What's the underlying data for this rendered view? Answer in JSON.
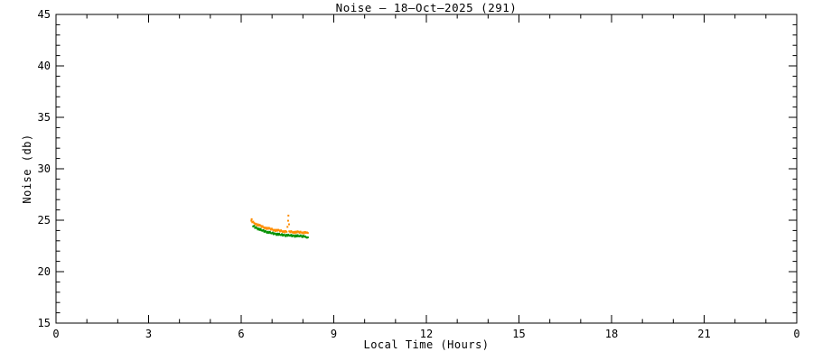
{
  "chart_data": {
    "type": "scatter",
    "title": "Noise – 18–Oct–2025 (291)",
    "xlabel": "Local Time (Hours)",
    "ylabel": "Noise (db)",
    "xlim": [
      0,
      24
    ],
    "ylim": [
      15,
      45
    ],
    "x_major_ticks": [
      0,
      3,
      6,
      9,
      12,
      15,
      18,
      21,
      24
    ],
    "x_tick_labels": [
      "0",
      "3",
      "6",
      "9",
      "12",
      "15",
      "18",
      "21",
      "0"
    ],
    "x_minor_step": 1,
    "y_major_ticks": [
      15,
      20,
      25,
      30,
      35,
      40,
      45
    ],
    "y_tick_labels": [
      "15",
      "20",
      "25",
      "30",
      "35",
      "40",
      "45"
    ],
    "y_minor_step": 1,
    "grid": false,
    "legend": "none",
    "background_color": "#FFFFFF",
    "axis_color": "#000000",
    "series": [
      {
        "name": "orange-channel",
        "color": "#FF8C00",
        "points": [
          [
            6.33,
            24.95
          ],
          [
            6.34,
            25.1
          ],
          [
            6.36,
            24.8
          ],
          [
            6.39,
            24.86
          ],
          [
            6.42,
            24.73
          ],
          [
            6.45,
            24.61
          ],
          [
            6.48,
            24.66
          ],
          [
            6.51,
            24.5
          ],
          [
            6.54,
            24.6
          ],
          [
            6.57,
            24.47
          ],
          [
            6.6,
            24.55
          ],
          [
            6.63,
            24.47
          ],
          [
            6.66,
            24.34
          ],
          [
            6.69,
            24.43
          ],
          [
            6.72,
            24.32
          ],
          [
            6.75,
            24.23
          ],
          [
            6.78,
            24.29
          ],
          [
            6.81,
            24.15
          ],
          [
            6.84,
            24.27
          ],
          [
            6.87,
            24.16
          ],
          [
            6.9,
            24.26
          ],
          [
            6.93,
            24.19
          ],
          [
            6.96,
            24.08
          ],
          [
            6.99,
            24.18
          ],
          [
            7.02,
            24.08
          ],
          [
            7.05,
            24.0
          ],
          [
            7.08,
            24.07
          ],
          [
            7.11,
            23.95
          ],
          [
            7.14,
            24.07
          ],
          [
            7.17,
            23.98
          ],
          [
            7.2,
            24.07
          ],
          [
            7.23,
            24.01
          ],
          [
            7.26,
            23.91
          ],
          [
            7.29,
            24.02
          ],
          [
            7.32,
            23.93
          ],
          [
            7.35,
            23.86
          ],
          [
            7.38,
            23.94
          ],
          [
            7.41,
            23.82
          ],
          [
            7.44,
            23.95
          ],
          [
            7.47,
            23.87
          ],
          [
            7.5,
            24.35
          ],
          [
            7.52,
            24.95
          ],
          [
            7.53,
            25.45
          ],
          [
            7.55,
            24.6
          ],
          [
            7.56,
            23.92
          ],
          [
            7.59,
            23.83
          ],
          [
            7.62,
            23.94
          ],
          [
            7.65,
            23.85
          ],
          [
            7.68,
            23.78
          ],
          [
            7.71,
            23.87
          ],
          [
            7.74,
            23.75
          ],
          [
            7.77,
            23.89
          ],
          [
            7.8,
            23.8
          ],
          [
            7.83,
            23.92
          ],
          [
            7.86,
            23.87
          ],
          [
            7.89,
            23.77
          ],
          [
            7.92,
            23.89
          ],
          [
            7.95,
            23.81
          ],
          [
            7.98,
            23.74
          ],
          [
            8.01,
            23.83
          ],
          [
            8.04,
            23.72
          ],
          [
            8.07,
            23.86
          ],
          [
            8.1,
            23.77
          ],
          [
            8.13,
            23.82
          ],
          [
            8.16,
            23.76
          ]
        ]
      },
      {
        "name": "green-channel",
        "color": "#009000",
        "points": [
          [
            6.39,
            24.4
          ],
          [
            6.42,
            24.45
          ],
          [
            6.45,
            24.25
          ],
          [
            6.48,
            24.32
          ],
          [
            6.51,
            24.23
          ],
          [
            6.54,
            24.1
          ],
          [
            6.57,
            24.19
          ],
          [
            6.6,
            24.05
          ],
          [
            6.63,
            24.15
          ],
          [
            6.66,
            24.01
          ],
          [
            6.69,
            23.97
          ],
          [
            6.72,
            24.04
          ],
          [
            6.75,
            23.87
          ],
          [
            6.78,
            23.95
          ],
          [
            6.81,
            23.88
          ],
          [
            6.84,
            23.77
          ],
          [
            6.87,
            23.88
          ],
          [
            6.9,
            23.76
          ],
          [
            6.93,
            23.87
          ],
          [
            6.96,
            23.75
          ],
          [
            6.99,
            23.72
          ],
          [
            7.02,
            23.8
          ],
          [
            7.05,
            23.64
          ],
          [
            7.08,
            23.73
          ],
          [
            7.11,
            23.68
          ],
          [
            7.14,
            23.57
          ],
          [
            7.17,
            23.7
          ],
          [
            7.2,
            23.57
          ],
          [
            7.23,
            23.69
          ],
          [
            7.26,
            23.58
          ],
          [
            7.29,
            23.56
          ],
          [
            7.32,
            23.65
          ],
          [
            7.35,
            23.5
          ],
          [
            7.38,
            23.6
          ],
          [
            7.41,
            23.55
          ],
          [
            7.44,
            23.45
          ],
          [
            7.47,
            23.59
          ],
          [
            7.5,
            23.48
          ],
          [
            7.53,
            23.6
          ],
          [
            7.56,
            23.5
          ],
          [
            7.59,
            23.49
          ],
          [
            7.62,
            23.58
          ],
          [
            7.65,
            23.43
          ],
          [
            7.68,
            23.53
          ],
          [
            7.71,
            23.49
          ],
          [
            7.74,
            23.39
          ],
          [
            7.77,
            23.53
          ],
          [
            7.8,
            23.42
          ],
          [
            7.83,
            23.55
          ],
          [
            7.86,
            23.45
          ],
          [
            7.89,
            23.43
          ],
          [
            7.92,
            23.53
          ],
          [
            7.95,
            23.46
          ],
          [
            7.98,
            23.36
          ],
          [
            8.01,
            23.5
          ],
          [
            8.04,
            23.4
          ],
          [
            8.07,
            23.43
          ],
          [
            8.1,
            23.35
          ],
          [
            8.13,
            23.3
          ],
          [
            8.16,
            23.33
          ]
        ]
      }
    ]
  }
}
